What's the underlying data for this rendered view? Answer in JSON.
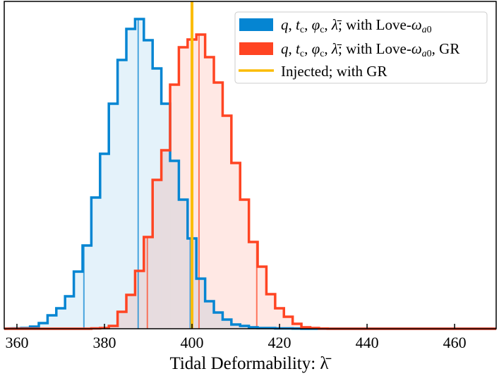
{
  "chart_data": {
    "type": "histogram",
    "xlabel": "Tidal Deformability: λ̄",
    "xlim": [
      357.1,
      469.5
    ],
    "ylim": [
      0,
      464
    ],
    "xticks": [
      360,
      380,
      400,
      420,
      440,
      460
    ],
    "grid": false,
    "y_axis_shown": false,
    "legend_placement": "top-right",
    "bin_start": 359,
    "bin_width": 2,
    "series": [
      {
        "name": "q, t_c, φ_c, λ̄; with Love-ω_a0",
        "color": "#0585d2",
        "fill": "rgba(5,133,210,0.11)",
        "counts": [
          0.5,
          1,
          3,
          8,
          19,
          29,
          46,
          81,
          118,
          186,
          248,
          319,
          381,
          425,
          439,
          409,
          369,
          319,
          238,
          183,
          128,
          71,
          39,
          23,
          13,
          6,
          4,
          2,
          1,
          1,
          0.5,
          0.5,
          0.3,
          0,
          0,
          0,
          0,
          0,
          0,
          0,
          0,
          0,
          0,
          0,
          0,
          0,
          0,
          0,
          0,
          0,
          0,
          0,
          0,
          0,
          0
        ],
        "quantiles": [
          375.3,
          387.7,
          399.6
        ]
      },
      {
        "name": "q, t_c, φ_c, λ̄; with Love-ω_a0, GR",
        "color": "#ff4422",
        "fill": "rgba(255,68,34,0.12)",
        "counts": [
          0,
          0,
          0,
          0,
          0,
          0,
          0,
          0,
          0,
          0.5,
          1,
          4,
          24,
          48,
          82,
          130,
          211,
          253,
          346,
          399,
          410,
          417,
          385,
          349,
          302,
          235,
          183,
          123,
          88,
          49,
          29,
          17,
          7,
          2,
          1,
          0.3,
          0,
          0,
          0,
          0,
          0,
          0,
          0,
          0,
          0,
          0,
          0,
          0,
          0,
          0,
          0,
          0,
          0,
          0,
          0
        ],
        "quantiles": [
          389.8,
          401.6,
          414.8
        ]
      }
    ],
    "vlines": [
      {
        "name": "Injected; with GR",
        "x": 400,
        "color": "#fbbc05"
      }
    ]
  },
  "legend": {
    "entries": [
      {
        "parts": [
          [
            "q",
            "i"
          ],
          [
            ", ",
            ""
          ],
          [
            "t",
            "i"
          ],
          [
            "c",
            "sub"
          ],
          [
            ", ",
            ""
          ],
          [
            "φ",
            "i"
          ],
          [
            "c",
            "sub"
          ],
          [
            ", ",
            ""
          ],
          [
            "λ̄",
            "i"
          ],
          [
            "; with Love-",
            ""
          ],
          [
            "ω",
            "i"
          ],
          [
            "a",
            "subi"
          ],
          [
            "0",
            "sub"
          ]
        ]
      },
      {
        "parts": [
          [
            "q",
            "i"
          ],
          [
            ", ",
            ""
          ],
          [
            "t",
            "i"
          ],
          [
            "c",
            "sub"
          ],
          [
            ", ",
            ""
          ],
          [
            "φ",
            "i"
          ],
          [
            "c",
            "sub"
          ],
          [
            ", ",
            ""
          ],
          [
            "λ̄",
            "i"
          ],
          [
            "; with Love-",
            ""
          ],
          [
            "ω",
            "i"
          ],
          [
            "a",
            "subi"
          ],
          [
            "0",
            "sub"
          ],
          [
            ", GR",
            ""
          ]
        ]
      },
      {
        "parts": [
          [
            "Injected; with GR",
            ""
          ]
        ]
      }
    ]
  }
}
